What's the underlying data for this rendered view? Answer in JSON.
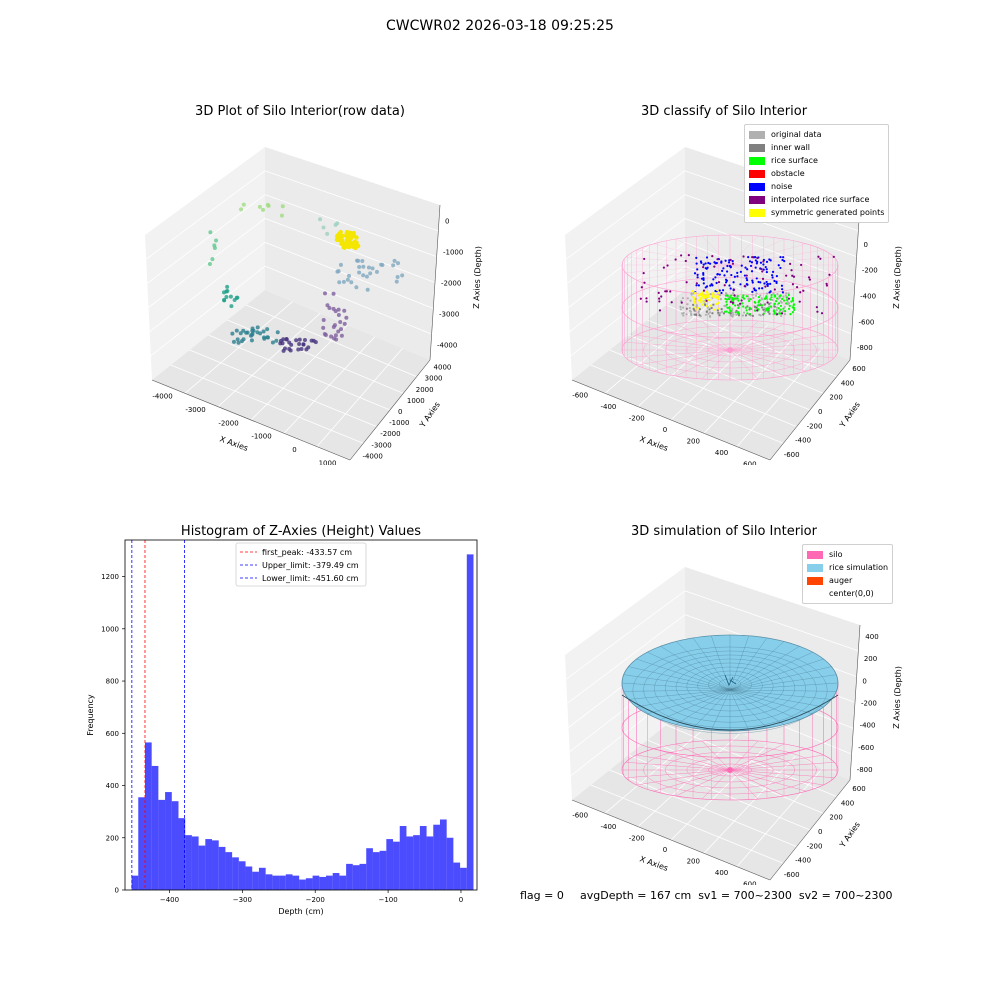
{
  "suptitle": "CWCWR02 2026-03-18 09:25:25",
  "footer": {
    "flag": "flag = 0",
    "stats": "avgDepth = 167 cm  sv1 = 700~2300  sv2 = 700~2300"
  },
  "panels": {
    "raw": {
      "title": "3D Plot of Silo Interior(row data)",
      "xlabel": "X Axies",
      "ylabel": "Y Axies",
      "zlabel": "Z Axies (Depth)",
      "xticks": [
        "-4000",
        "-3000",
        "-2000",
        "-1000",
        "0",
        "1000"
      ],
      "yticks": [
        "4000",
        "3000",
        "2000",
        "1000",
        "0",
        "-1000",
        "-2000",
        "-3000",
        "-4000"
      ],
      "zticks": [
        "0",
        "-1000",
        "-2000",
        "-3000",
        "-4000"
      ]
    },
    "classify": {
      "title": "3D classify of Silo Interior",
      "xlabel": "X Axies",
      "ylabel": "Y Axies",
      "zlabel": "Z Axies (Depth)",
      "xticks": [
        "-600",
        "-400",
        "-200",
        "0",
        "200",
        "400",
        "600"
      ],
      "yticks": [
        "600",
        "400",
        "200",
        "0",
        "-200",
        "-400",
        "-600"
      ],
      "zticks": [
        "200",
        "0",
        "-200",
        "-400",
        "-600",
        "-800"
      ],
      "legend": [
        {
          "label": "original data",
          "color": "#b0b0b0"
        },
        {
          "label": "inner wall",
          "color": "#808080"
        },
        {
          "label": "rice surface",
          "color": "#00ff00"
        },
        {
          "label": "obstacle",
          "color": "#ff0000"
        },
        {
          "label": "noise",
          "color": "#0000ff"
        },
        {
          "label": "interpolated rice surface",
          "color": "#800080"
        },
        {
          "label": "symmetric generated points",
          "color": "#ffff00"
        }
      ]
    },
    "simulation": {
      "title": "3D simulation of Silo Interior",
      "xlabel": "X Axies",
      "ylabel": "Y Axies",
      "zlabel": "Z Axies (Depth)",
      "xticks": [
        "-600",
        "-400",
        "-200",
        "0",
        "200",
        "400",
        "600"
      ],
      "yticks": [
        "600",
        "400",
        "200",
        "0",
        "-200",
        "-400",
        "-600"
      ],
      "zticks": [
        "400",
        "200",
        "0",
        "-200",
        "-400",
        "-600",
        "-800"
      ],
      "legend": [
        {
          "label": "silo",
          "color": "#ff69b4"
        },
        {
          "label": "rice simulation",
          "color": "#87ceeb"
        },
        {
          "label": "auger",
          "color": "#ff4500"
        },
        {
          "label": "center(0,0)",
          "color": "#ffffff"
        }
      ]
    }
  },
  "chart_data": {
    "type": "bar",
    "title": "Histogram of Z-Axies (Height) Values",
    "xlabel": "Depth (cm)",
    "ylabel": "Frequency",
    "xlim": [
      -461,
      22
    ],
    "ylim": [
      0,
      1340
    ],
    "xticks": [
      -400,
      -300,
      -200,
      -100,
      0
    ],
    "yticks": [
      0,
      200,
      400,
      600,
      800,
      1000,
      1200
    ],
    "bar_color": "#0000ff",
    "bin_width": 9.2,
    "bin_start": -452,
    "values": [
      55,
      355,
      565,
      475,
      345,
      375,
      340,
      275,
      210,
      205,
      170,
      195,
      190,
      165,
      145,
      125,
      110,
      90,
      70,
      85,
      60,
      55,
      55,
      60,
      55,
      40,
      45,
      55,
      50,
      55,
      65,
      55,
      100,
      95,
      100,
      160,
      145,
      150,
      195,
      185,
      245,
      205,
      210,
      245,
      205,
      250,
      270,
      200,
      105,
      85,
      1285
    ],
    "vlines": [
      {
        "label": "first_peak: -433.57 cm",
        "x": -433.57,
        "color": "#ff0000"
      },
      {
        "label": "Upper_limit: -379.49 cm",
        "x": -379.49,
        "color": "#0000ff"
      },
      {
        "label": "Lower_limit: -451.60 cm",
        "x": -451.6,
        "color": "#0000ff"
      }
    ]
  }
}
